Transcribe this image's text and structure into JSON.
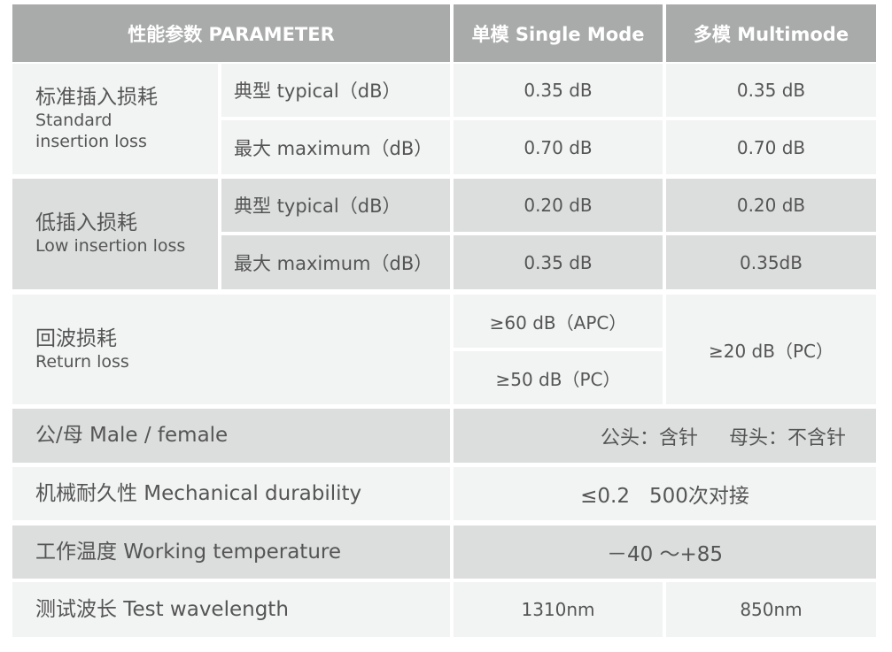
{
  "header": {
    "param": "性能参数 PARAMETER",
    "single": "单模 Single Mode",
    "multi": "多模 Multimode"
  },
  "rows": {
    "std": {
      "cn": "标准插入损耗",
      "en1": "Standard",
      "en2": "insertion loss",
      "typ": "典型  typical（dB）",
      "max": "最大  maximum（dB）",
      "sm_typ": "0.35 dB",
      "mm_typ": "0.35 dB",
      "sm_max": "0.70 dB",
      "mm_max": "0.70 dB"
    },
    "low": {
      "cn": "低插入损耗",
      "en": "Low insertion loss",
      "typ": "典型  typical（dB）",
      "max": "最大  maximum（dB）",
      "sm_typ": "0.20 dB",
      "mm_typ": "0.20 dB",
      "sm_max": "0.35 dB",
      "mm_max": "0.35dB"
    },
    "ret": {
      "cn": "回波损耗",
      "en": "Return loss",
      "sm_apc": "≥60 dB（APC）",
      "sm_pc": "≥50 dB（PC）",
      "mm": "≥20 dB（PC）"
    },
    "mf": {
      "label": "公/母 Male / female",
      "value": "公头：含针     母头：不含针"
    },
    "mech": {
      "label": "机械耐久性 Mechanical durability",
      "value": "≤0.2   500次对接"
    },
    "temp": {
      "label": "工作温度 Working temperature",
      "value": "－40 ～+85"
    },
    "wave": {
      "label": "测试波长 Test wavelength",
      "sm": "1310nm",
      "mm": "850nm"
    }
  }
}
